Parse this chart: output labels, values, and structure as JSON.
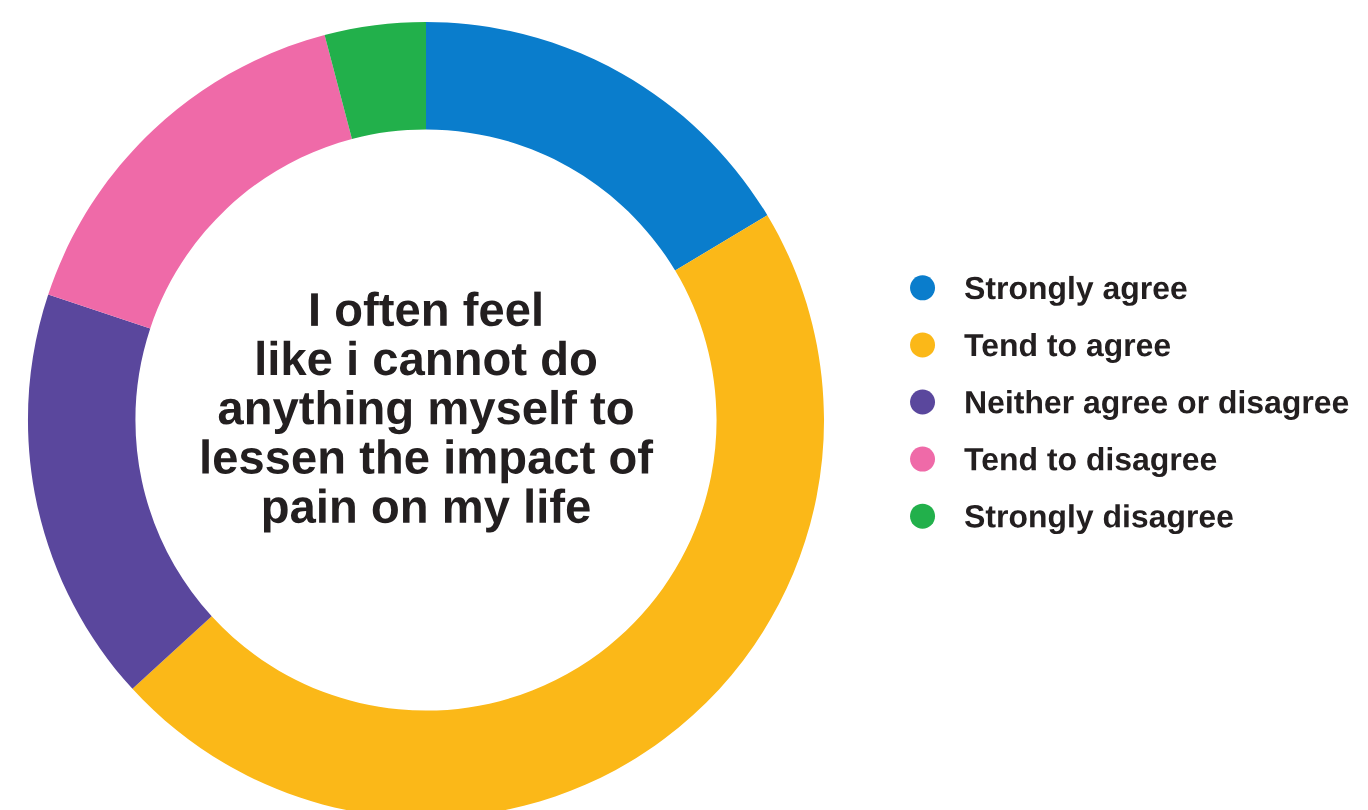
{
  "chart_data": {
    "type": "donut",
    "title": "I often feel\nlike i cannot do\nanything myself to\nlessen the impact of\npain on my life",
    "categories": [
      "Strongly agree",
      "Tend to agree",
      "Neither agree or disagree",
      "Tend to disagree",
      "Strongly disagree"
    ],
    "values": [
      16.4,
      46.8,
      16.9,
      15.8,
      4.1
    ],
    "colors": [
      "#0a7dcc",
      "#fbb818",
      "#5a479d",
      "#ef6aa8",
      "#22b04b"
    ],
    "legend": "right"
  }
}
